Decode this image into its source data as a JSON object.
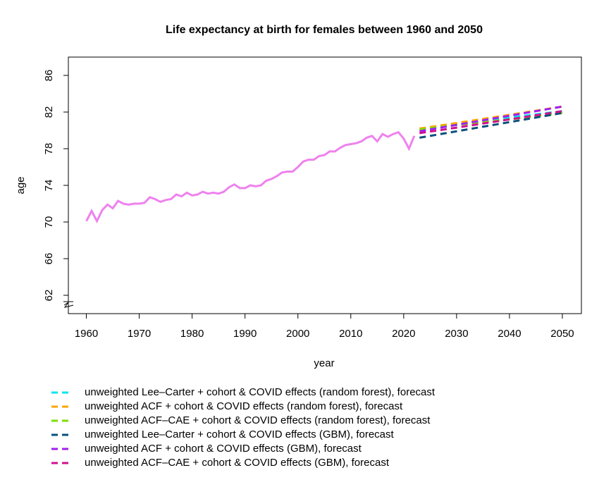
{
  "chart_data": {
    "type": "line",
    "title": "Life expectancy at birth for females between 1960 and 2050",
    "x_label": "year",
    "y_label": "age",
    "xlim": [
      1956.6,
      2053.6
    ],
    "xticks": [
      1960,
      1970,
      1980,
      1990,
      2000,
      2010,
      2020,
      2030,
      2040,
      2050
    ],
    "ylim": [
      60,
      88
    ],
    "yticks": [
      62,
      66,
      70,
      74,
      78,
      82,
      86
    ],
    "legend": "bottom",
    "series": [
      {
        "color": "#ee82ee",
        "dashed": false,
        "x": [
          1960,
          1961,
          1962,
          1963,
          1964,
          1965,
          1966,
          1967,
          1968,
          1969,
          1970,
          1971,
          1972,
          1973,
          1974,
          1975,
          1976,
          1977,
          1978,
          1979,
          1980,
          1981,
          1982,
          1983,
          1984,
          1985,
          1986,
          1987,
          1988,
          1989,
          1990,
          1991,
          1992,
          1993,
          1994,
          1995,
          1996,
          1997,
          1998,
          1999,
          2000,
          2001,
          2002,
          2003,
          2004,
          2005,
          2006,
          2007,
          2008,
          2009,
          2010,
          2011,
          2012,
          2013,
          2014,
          2015,
          2016,
          2017,
          2018,
          2019,
          2020,
          2021,
          2022
        ],
        "values": [
          70.1,
          71.2,
          70.1,
          71.3,
          71.9,
          71.5,
          72.3,
          72.0,
          71.9,
          72.0,
          72.0,
          72.1,
          72.7,
          72.5,
          72.2,
          72.4,
          72.5,
          73.0,
          72.8,
          73.2,
          72.9,
          73.0,
          73.3,
          73.1,
          73.2,
          73.1,
          73.3,
          73.8,
          74.1,
          73.7,
          73.7,
          74.0,
          73.9,
          74.0,
          74.5,
          74.7,
          75.0,
          75.4,
          75.5,
          75.5,
          76.0,
          76.6,
          76.8,
          76.8,
          77.2,
          77.3,
          77.7,
          77.7,
          78.1,
          78.4,
          78.5,
          78.6,
          78.8,
          79.2,
          79.4,
          78.8,
          79.6,
          79.3,
          79.6,
          79.8,
          79.1,
          78.0,
          79.4
        ]
      },
      {
        "name": "unweighted Lee–Carter + cohort & COVID effects (random forest), forecast",
        "color": "#00e5ee",
        "dashed": true,
        "x": [
          2023,
          2030,
          2040,
          2050
        ],
        "values": [
          80.1,
          80.6,
          81.4,
          82.1
        ]
      },
      {
        "name": "unweighted ACF + cohort & COVID effects (random forest), forecast",
        "color": "#ffa500",
        "dashed": true,
        "x": [
          2023,
          2030,
          2040,
          2050
        ],
        "values": [
          80.2,
          80.8,
          81.7,
          82.6
        ]
      },
      {
        "name": "unweighted ACF–CAE + cohort & COVID effects (random forest), forecast",
        "color": "#7fdd00",
        "dashed": true,
        "x": [
          2023,
          2030,
          2040,
          2050
        ],
        "values": [
          80.1,
          80.6,
          81.2,
          81.9
        ]
      },
      {
        "name": "unweighted Lee–Carter + cohort & COVID effects (GBM), forecast",
        "color": "#0b4f7c",
        "dashed": true,
        "x": [
          2023,
          2030,
          2040,
          2050
        ],
        "values": [
          79.2,
          79.9,
          80.9,
          81.9
        ]
      },
      {
        "name": "unweighted ACF + cohort & COVID effects (GBM), forecast",
        "color": "#a020f0",
        "dashed": true,
        "x": [
          2023,
          2030,
          2040,
          2050
        ],
        "values": [
          79.9,
          80.6,
          81.6,
          82.6
        ]
      },
      {
        "name": "unweighted ACF–CAE + cohort & COVID effects (GBM), forecast",
        "color": "#d0108f",
        "dashed": true,
        "x": [
          2023,
          2030,
          2040,
          2050
        ],
        "values": [
          79.7,
          80.3,
          81.2,
          82.1
        ]
      }
    ]
  }
}
